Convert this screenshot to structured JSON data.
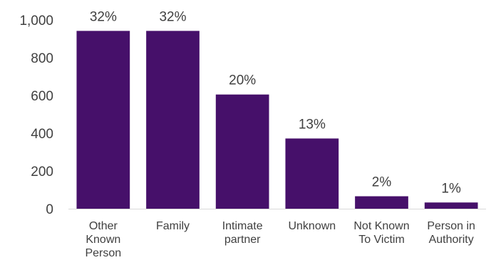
{
  "chart_data": {
    "type": "bar",
    "categories": [
      "Other Known Person",
      "Family",
      "Intimate partner",
      "Unknown",
      "Not Known To Victim",
      "Person in Authority"
    ],
    "category_lines": [
      [
        "Other",
        "Known",
        "Person"
      ],
      [
        "Family"
      ],
      [
        "Intimate",
        "partner"
      ],
      [
        "Unknown"
      ],
      [
        "Not Known",
        "To Victim"
      ],
      [
        "Person in",
        "Authority"
      ]
    ],
    "values": [
      942,
      942,
      605,
      372,
      66,
      33
    ],
    "data_labels": [
      "32%",
      "32%",
      "20%",
      "13%",
      "2%",
      "1%"
    ],
    "y_ticks": [
      "0",
      "200",
      "400",
      "600",
      "800",
      "1,000"
    ],
    "ylim": [
      0,
      1000
    ],
    "bar_color": "#46106a",
    "baseline_color": "#d9d9d9",
    "text_color": "#404040"
  }
}
